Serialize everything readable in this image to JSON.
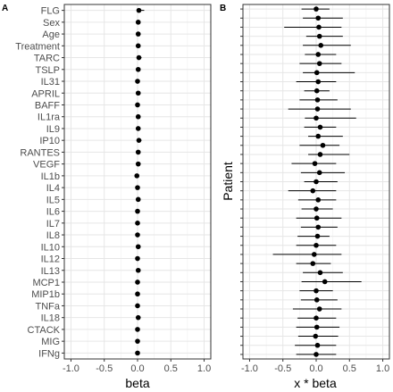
{
  "chart_data": [
    {
      "panel": "A",
      "type": "scatter",
      "subtype": "coefficient-plot",
      "xlabel": "beta",
      "ylabel": "",
      "xlim": [
        -1.1,
        1.1
      ],
      "x_ticks": [
        -1.0,
        -0.5,
        0.0,
        0.5,
        1.0
      ],
      "x_tick_labels": [
        "-1.0",
        "-0.5",
        "0.0",
        "0.5",
        "1.0"
      ],
      "grid": true,
      "categories": [
        "FLG",
        "Sex",
        "Age",
        "Treatment",
        "TARC",
        "TSLP",
        "IL31",
        "APRIL",
        "BAFF",
        "IL1ra",
        "IL9",
        "IP10",
        "RANTES",
        "VEGF",
        "IL1b",
        "IL4",
        "IL5",
        "IL6",
        "IL7",
        "IL8",
        "IL10",
        "IL12",
        "IL13",
        "MCP1",
        "MIP1b",
        "TNFa",
        "IL18",
        "CTACK",
        "MIG",
        "IFNg"
      ],
      "estimate": [
        0.02,
        0.01,
        0.01,
        0.01,
        0.02,
        0.01,
        0.0,
        0.01,
        0.0,
        0.01,
        0.01,
        0.02,
        0.01,
        0.01,
        -0.01,
        0.0,
        0.01,
        0.0,
        0.0,
        0.0,
        0.01,
        0.0,
        0.01,
        0.0,
        0.0,
        0.0,
        0.01,
        0.0,
        0.0,
        0.0
      ],
      "lower": [
        -0.01,
        -0.01,
        -0.01,
        -0.01,
        -0.01,
        -0.01,
        -0.02,
        -0.01,
        -0.02,
        -0.01,
        -0.01,
        -0.01,
        -0.01,
        -0.01,
        -0.03,
        -0.02,
        -0.01,
        -0.02,
        -0.02,
        -0.02,
        -0.01,
        -0.02,
        -0.01,
        -0.02,
        -0.02,
        -0.02,
        -0.01,
        -0.02,
        -0.02,
        -0.02
      ],
      "upper": [
        0.1,
        0.04,
        0.03,
        0.04,
        0.06,
        0.04,
        0.03,
        0.04,
        0.03,
        0.04,
        0.04,
        0.06,
        0.04,
        0.04,
        0.02,
        0.02,
        0.04,
        0.02,
        0.02,
        0.02,
        0.03,
        0.02,
        0.03,
        0.02,
        0.02,
        0.02,
        0.03,
        0.02,
        0.02,
        0.02
      ]
    },
    {
      "panel": "B",
      "type": "scatter",
      "subtype": "coefficient-plot",
      "xlabel": "x * beta",
      "ylabel": "Patient",
      "xlim": [
        -1.1,
        1.1
      ],
      "x_ticks": [
        -1.0,
        -0.5,
        0.0,
        0.5,
        1.0
      ],
      "x_tick_labels": [
        "-1.0",
        "-0.5",
        "0.0",
        "0.5",
        "1.0"
      ],
      "grid": true,
      "y_tick_labels_shown": false,
      "estimate": [
        0.0,
        0.03,
        0.04,
        0.05,
        0.07,
        0.03,
        0.05,
        0.01,
        0.03,
        0.01,
        0.02,
        0.02,
        0.0,
        0.06,
        0.03,
        0.1,
        0.06,
        -0.02,
        0.05,
        0.0,
        -0.05,
        0.03,
        0.0,
        0.01,
        0.03,
        0.02,
        0.0,
        -0.03,
        -0.05,
        0.06,
        0.13,
        0.0,
        0.01,
        0.05,
        0.0,
        0.01,
        -0.01,
        0.02,
        0.0
      ],
      "lower": [
        -0.22,
        -0.2,
        -0.48,
        -0.15,
        -0.2,
        -0.17,
        -0.25,
        -0.2,
        -0.3,
        -0.18,
        -0.25,
        -0.42,
        -0.17,
        -0.18,
        -0.12,
        -0.25,
        -0.12,
        -0.37,
        -0.23,
        -0.18,
        -0.42,
        -0.27,
        -0.22,
        -0.3,
        -0.23,
        -0.28,
        -0.3,
        -0.65,
        -0.3,
        -0.2,
        -0.22,
        -0.25,
        -0.23,
        -0.35,
        -0.28,
        -0.3,
        -0.27,
        -0.32,
        -0.3
      ],
      "upper": [
        0.2,
        0.4,
        0.38,
        0.4,
        0.52,
        0.3,
        0.38,
        0.58,
        0.3,
        0.2,
        0.32,
        0.52,
        0.6,
        0.3,
        0.4,
        0.35,
        0.5,
        0.3,
        0.43,
        0.32,
        0.3,
        0.3,
        0.25,
        0.38,
        0.32,
        0.2,
        0.3,
        0.38,
        0.22,
        0.4,
        0.68,
        0.25,
        0.32,
        0.38,
        0.3,
        0.35,
        0.33,
        0.3,
        0.3
      ]
    }
  ]
}
